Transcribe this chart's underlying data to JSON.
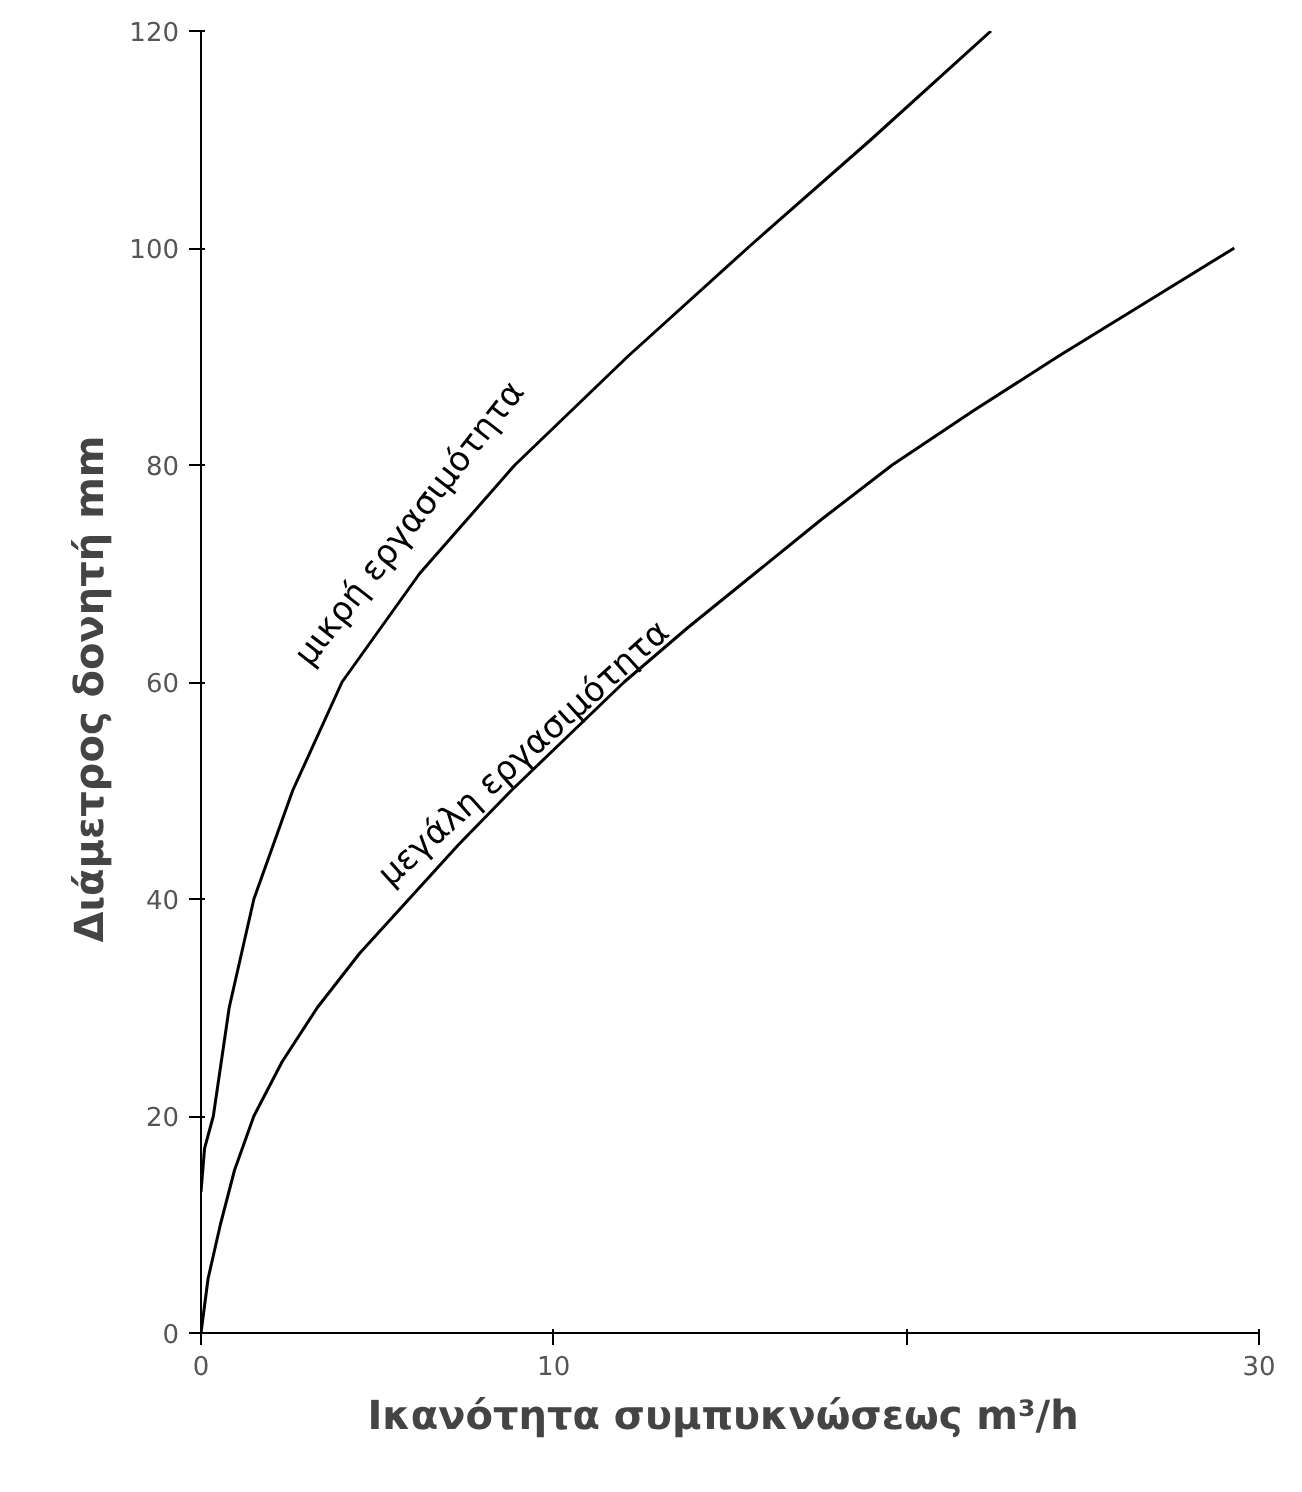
{
  "chart_data": {
    "type": "line",
    "xlabel": "Ικανότητα συμπυκνώσεως  m³/h",
    "ylabel": "Διάμετρος δονητή  mm",
    "xlim": [
      0,
      30
    ],
    "xticks": [
      0,
      10,
      {
        "value": 20,
        "label": null
      },
      30
    ],
    "ylim": [
      0,
      120
    ],
    "yticks": [
      0,
      20,
      40,
      60,
      80,
      100,
      120
    ],
    "grid": false,
    "marker": "none",
    "line_style": "solid",
    "series": [
      {
        "name": "μικρή εργασιμότητα",
        "color": "#000000",
        "x": [
          0,
          0.1,
          0.35,
          0.8,
          1.5,
          2.6,
          4,
          6.2,
          8.9,
          12.1,
          15.5,
          19,
          22.4
        ],
        "values": [
          13,
          17,
          20,
          30,
          40,
          50,
          60,
          70,
          80,
          90,
          100,
          110,
          120
        ]
      },
      {
        "name": "μεγάλη εργασιμότητα",
        "color": "#000000",
        "x": [
          0,
          0.2,
          0.55,
          0.95,
          1.5,
          2.3,
          3.3,
          4.5,
          5.9,
          7.3,
          8.8,
          10.4,
          12,
          13.8,
          15.7,
          17.6,
          19.6,
          21.9,
          24.3,
          26.8,
          29.3
        ],
        "values": [
          0,
          5,
          10,
          15,
          20,
          25,
          30,
          35,
          40,
          45,
          50,
          55,
          60,
          65,
          70,
          75,
          80,
          85,
          90,
          95,
          100
        ]
      }
    ]
  }
}
